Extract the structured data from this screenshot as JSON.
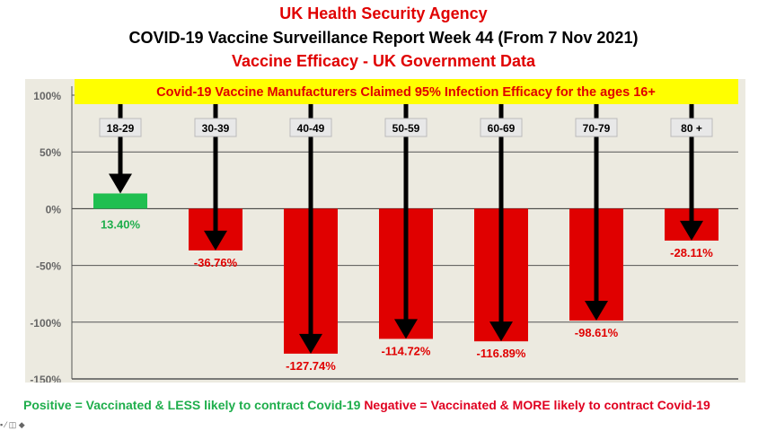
{
  "header": {
    "line1": "UK Health Security Agency",
    "line2": "COVID-19 Vaccine Surveillance Report Week 44 (From 7  Nov 2021)",
    "line3": "Vaccine Efficacy - UK Government Data"
  },
  "footer": {
    "positive": "Positive = Vaccinated & LESS likely to contract Covid-19",
    "negative": "Negative = Vaccinated & MORE likely to contract Covid-19"
  },
  "chart_data": {
    "type": "bar",
    "title": "Covid-19 Vaccine Manufacturers Claimed 95% Infection Efficacy for the ages 16+",
    "categories": [
      "18-29",
      "30-39",
      "40-49",
      "50-59",
      "60-69",
      "70-79",
      "80 +"
    ],
    "values": [
      13.4,
      -36.76,
      -127.74,
      -114.72,
      -116.89,
      -98.61,
      -28.11
    ],
    "value_labels": [
      "13.40%",
      "-36.76%",
      "-127.74%",
      "-114.72%",
      "-116.89%",
      "-98.61%",
      "-28.11%"
    ],
    "ylim": [
      -150,
      100
    ],
    "yticks": [
      "100%",
      "50%",
      "0%",
      "-50%",
      "-100%",
      "-150%"
    ],
    "ytick_values": [
      100,
      50,
      0,
      -50,
      -100,
      -150
    ],
    "grid": true,
    "colors": {
      "positive": "#1fbf50",
      "negative": "#e00000",
      "banner": "#ffff00",
      "banner_text": "#e00000"
    }
  }
}
